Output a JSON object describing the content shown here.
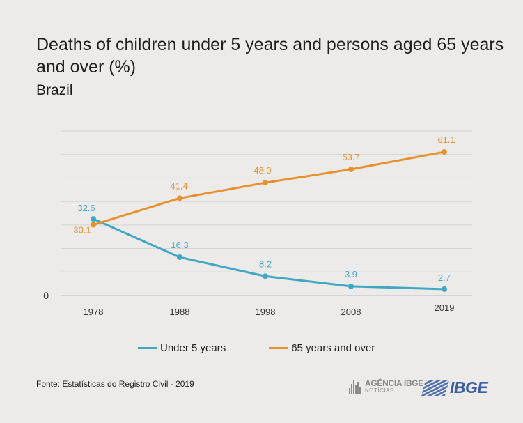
{
  "chart_data": {
    "type": "line",
    "title": "Deaths of children under 5 years and persons aged 65 years and over (%)",
    "subtitle": "Brazil",
    "x": [
      "1978",
      "1988",
      "1998",
      "2008",
      "2019"
    ],
    "ylim": [
      0,
      70
    ],
    "y_tick_labels": [
      "0"
    ],
    "grid": true,
    "legend_position": "bottom",
    "series": [
      {
        "name": "Under 5 years",
        "color": "#3fa7c4",
        "values": [
          32.6,
          16.3,
          8.2,
          3.9,
          2.7
        ],
        "labels": [
          "32.6",
          "16.3",
          "8.2",
          "3.9",
          "2.7"
        ]
      },
      {
        "name": "65 years and over",
        "color": "#e8912c",
        "values": [
          30.1,
          41.4,
          48.0,
          53.7,
          61.1
        ],
        "labels": [
          "30.1",
          "41.4",
          "48.0",
          "53.7",
          "61.1"
        ]
      }
    ]
  },
  "footer": {
    "source": "Fonte: Estatísticas do Registro Civil - 2019",
    "agencia_line1": "AGÊNCIA IBGE",
    "agencia_line2": "NOTÍCIAS",
    "ibge_logo": "IBGE"
  }
}
